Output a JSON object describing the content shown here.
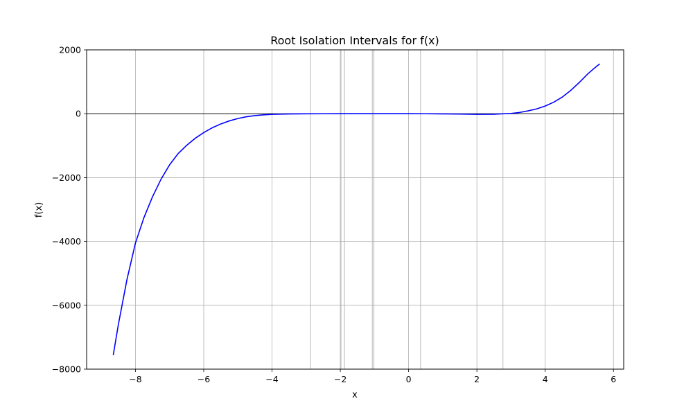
{
  "chart_data": {
    "type": "line",
    "title": "Root Isolation Intervals for f(x)",
    "xlabel": "x",
    "ylabel": "f(x)",
    "xlim": [
      -9.43,
      6.3
    ],
    "ylim": [
      -8000,
      2000
    ],
    "grid": true,
    "x_ticks": [
      {
        "value": -8,
        "label": "−8"
      },
      {
        "value": -6,
        "label": "−6"
      },
      {
        "value": -4,
        "label": "−4"
      },
      {
        "value": -2,
        "label": "−2"
      },
      {
        "value": 0,
        "label": "0"
      },
      {
        "value": 2,
        "label": "2"
      },
      {
        "value": 4,
        "label": "4"
      },
      {
        "value": 6,
        "label": "6"
      }
    ],
    "y_ticks": [
      {
        "value": 2000,
        "label": "2000"
      },
      {
        "value": 0,
        "label": "0"
      },
      {
        "value": -2000,
        "label": "−2000"
      },
      {
        "value": -4000,
        "label": "−4000"
      },
      {
        "value": -6000,
        "label": "−6000"
      },
      {
        "value": -8000,
        "label": "−8000"
      }
    ],
    "interval_lines_x": [
      -2.87,
      -1.98,
      -1.88,
      -1.06,
      -1.02,
      0.35,
      2.76
    ],
    "zero_line_y": 0,
    "series": [
      {
        "color": "#0000ff",
        "x": [
          -8.65,
          -8.5,
          -8.25,
          -8.0,
          -7.75,
          -7.5,
          -7.25,
          -7.0,
          -6.75,
          -6.5,
          -6.25,
          -6.0,
          -5.75,
          -5.5,
          -5.25,
          -5.0,
          -4.75,
          -4.5,
          -4.25,
          -4.0,
          -3.5,
          -3.0,
          -2.5,
          -2.0,
          -1.5,
          -1.0,
          -0.5,
          0.0,
          0.5,
          1.0,
          1.5,
          2.0,
          2.5,
          3.0,
          3.25,
          3.5,
          3.75,
          4.0,
          4.25,
          4.5,
          4.75,
          5.0,
          5.25,
          5.5,
          5.6
        ],
        "y": [
          -7560,
          -6600,
          -5200,
          -4050,
          -3250,
          -2600,
          -2050,
          -1600,
          -1250,
          -990,
          -770,
          -590,
          -440,
          -320,
          -225,
          -150,
          -95,
          -60,
          -35,
          -20,
          -8,
          -3,
          -1,
          0,
          0,
          0,
          0,
          0,
          -1,
          -5,
          -12,
          -20,
          -15,
          10,
          40,
          90,
          150,
          240,
          360,
          520,
          730,
          980,
          1250,
          1480,
          1560
        ]
      }
    ]
  }
}
